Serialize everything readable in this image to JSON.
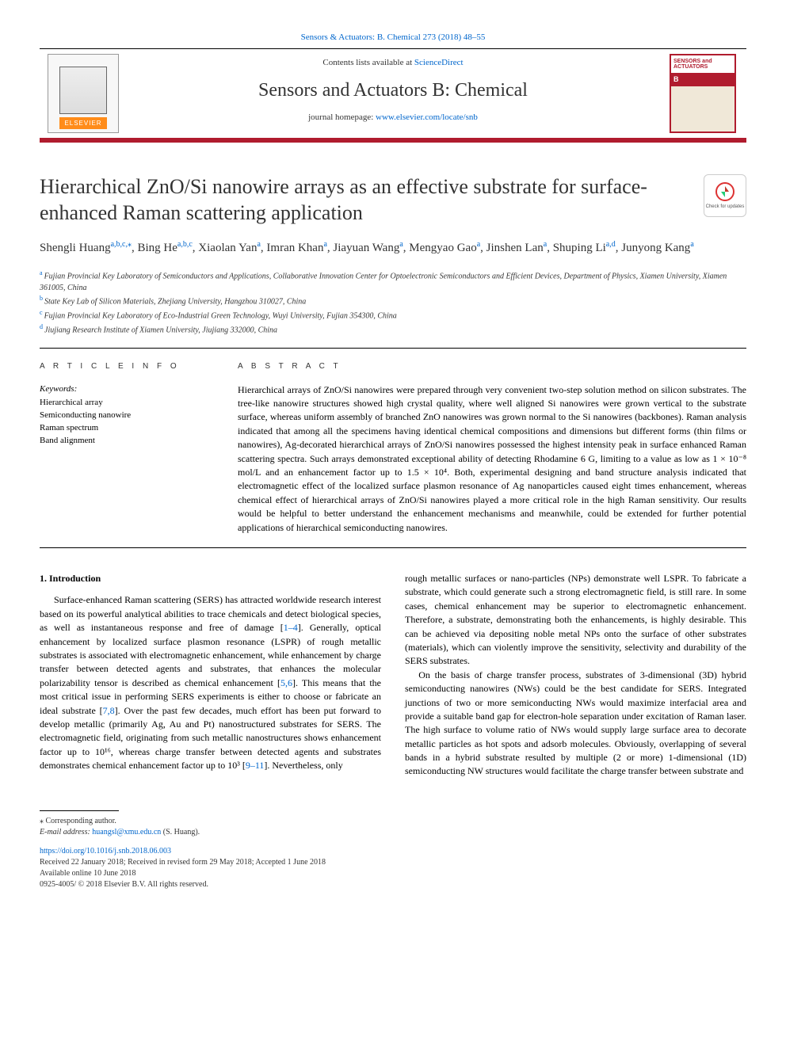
{
  "meta": {
    "journal_ref": "Sensors & Actuators: B. Chemical 273 (2018) 48–55",
    "contents_line_prefix": "Contents lists available at ",
    "contents_line_link": "ScienceDirect",
    "journal_title": "Sensors and Actuators B: Chemical",
    "homepage_prefix": "journal homepage: ",
    "homepage_url": "www.elsevier.com/locate/snb",
    "elsevier_label": "ELSEVIER",
    "cover_text1": "SENSORS and",
    "cover_text2": "ACTUATORS",
    "cover_text3": "B",
    "check_updates_label": "Check for updates",
    "colors": {
      "accent": "#b01c2e",
      "link": "#0066cc",
      "text": "#333333",
      "elsevier_orange": "#ff8c1a"
    }
  },
  "article": {
    "title": "Hierarchical ZnO/Si nanowire arrays as an effective substrate for surface-enhanced Raman scattering application",
    "authors_html": "Shengli Huang<sup class='sup'>a,b,c,</sup><sup class='sup'>⁎</sup>, Bing He<sup class='sup'>a,b,c</sup>, Xiaolan Yan<sup class='sup'>a</sup>, Imran Khan<sup class='sup'>a</sup>, Jiayuan Wang<sup class='sup'>a</sup>, Mengyao Gao<sup class='sup'>a</sup>, Jinshen Lan<sup class='sup'>a</sup>, Shuping Li<sup class='sup'>a,d</sup>, Junyong Kang<sup class='sup'>a</sup>",
    "affiliations": [
      {
        "sup": "a",
        "text": "Fujian Provincial Key Laboratory of Semiconductors and Applications, Collaborative Innovation Center for Optoelectronic Semiconductors and Efficient Devices, Department of Physics, Xiamen University, Xiamen 361005, China"
      },
      {
        "sup": "b",
        "text": "State Key Lab of Silicon Materials, Zhejiang University, Hangzhou 310027, China"
      },
      {
        "sup": "c",
        "text": "Fujian Provincial Key Laboratory of Eco-Industrial Green Technology, Wuyi University, Fujian 354300, China"
      },
      {
        "sup": "d",
        "text": "Jiujiang Research Institute of Xiamen University, Jiujiang 332000, China"
      }
    ],
    "info_head": "A R T I C L E  I N F O",
    "abs_head": "A B S T R A C T",
    "keywords_label": "Keywords:",
    "keywords": [
      "Hierarchical array",
      "Semiconducting nanowire",
      "Raman spectrum",
      "Band alignment"
    ],
    "abstract": "Hierarchical arrays of ZnO/Si nanowires were prepared through very convenient two-step solution method on silicon substrates. The tree-like nanowire structures showed high crystal quality, where well aligned Si nanowires were grown vertical to the substrate surface, whereas uniform assembly of branched ZnO nanowires was grown normal to the Si nanowires (backbones). Raman analysis indicated that among all the specimens having identical chemical compositions and dimensions but different forms (thin films or nanowires), Ag-decorated hierarchical arrays of ZnO/Si nanowires possessed the highest intensity peak in surface enhanced Raman scattering spectra. Such arrays demonstrated exceptional ability of detecting Rhodamine 6 G, limiting to a value as low as 1 × 10⁻⁸ mol/L and an enhancement factor up to 1.5 × 10⁴. Both, experimental designing and band structure analysis indicated that electromagnetic effect of the localized surface plasmon resonance of Ag nanoparticles caused eight times enhancement, whereas chemical effect of hierarchical arrays of ZnO/Si nanowires played a more critical role in the high Raman sensitivity. Our results would be helpful to better understand the enhancement mechanisms and meanwhile, could be extended for further potential applications of hierarchical semiconducting nanowires.",
    "section1_title": "1. Introduction",
    "col1_html": "Surface-enhanced Raman scattering (SERS) has attracted worldwide research interest based on its powerful analytical abilities to trace chemicals and detect biological species, as well as instantaneous response and free of damage [<span class='refnum'>1–4</span>]. Generally, optical enhancement by localized surface plasmon resonance (LSPR) of rough metallic substrates is associated with electromagnetic enhancement, while enhancement by charge transfer between detected agents and substrates, that enhances the molecular polarizability tensor is described as chemical enhancement [<span class='refnum'>5,6</span>]. This means that the most critical issue in performing SERS experiments is either to choose or fabricate an ideal substrate [<span class='refnum'>7,8</span>]. Over the past few decades, much effort has been put forward to develop metallic (primarily Ag, Au and Pt) nanostructured substrates for SERS. The electromagnetic field, originating from such metallic nanostructures shows enhancement factor up to 10¹⁶, whereas charge transfer between detected agents and substrates demonstrates chemical enhancement factor up to 10³ [<span class='refnum'>9–11</span>]. Nevertheless, only",
    "col2_html": "rough metallic surfaces or nano-particles (NPs) demonstrate well LSPR. To fabricate a substrate, which could generate such a strong electromagnetic field, is still rare. In some cases, chemical enhancement may be superior to electromagnetic enhancement. Therefore, a substrate, demonstrating both the enhancements, is highly desirable. This can be achieved via depositing noble metal NPs onto the surface of other substrates (materials), which can violently improve the sensitivity, selectivity and durability of the SERS substrates.<br>&nbsp;&nbsp;&nbsp;On the basis of charge transfer process, substrates of 3-dimensional (3D) hybrid semiconducting nanowires (NWs) could be the best candidate for SERS. Integrated junctions of two or more semiconducting NWs would maximize interfacial area and provide a suitable band gap for electron-hole separation under excitation of Raman laser. The high surface to volume ratio of NWs would supply large surface area to decorate metallic particles as hot spots and adsorb molecules. Obviously, overlapping of several bands in a hybrid substrate resulted by multiple (2 or more) 1-dimensional (1D) semiconducting NW structures would facilitate the charge transfer between substrate and"
  },
  "footer": {
    "corr_label": "⁎ Corresponding author.",
    "email_label": "E-mail address: ",
    "email": "huangsl@xmu.edu.cn",
    "email_who": " (S. Huang).",
    "doi": "https://doi.org/10.1016/j.snb.2018.06.003",
    "history": "Received 22 January 2018; Received in revised form 29 May 2018; Accepted 1 June 2018",
    "available": "Available online 10 June 2018",
    "copyright": "0925-4005/ © 2018 Elsevier B.V. All rights reserved."
  }
}
